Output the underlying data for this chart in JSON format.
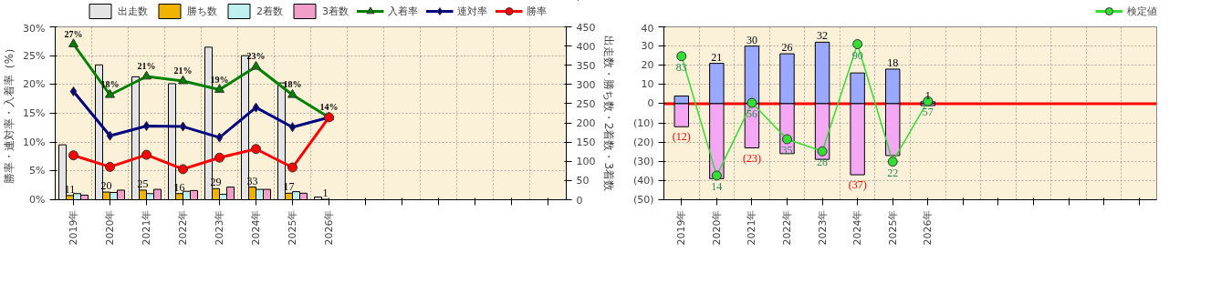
{
  "chart_data": [
    {
      "type": "bar",
      "categories": [
        "2019年",
        "2020年",
        "2021年",
        "2022年",
        "2023年",
        "2024年",
        "2025年",
        "2026年",
        null,
        null,
        null,
        null,
        null,
        null
      ],
      "ylabel": "勝率・連対率・入着率（%）",
      "y2label": "出走数・勝ち数・2着数・3着数",
      "ylim": [
        0,
        30
      ],
      "yticks": [
        {
          "value": 0,
          "label": "0%"
        },
        {
          "value": 5,
          "label": "5%"
        },
        {
          "value": 10,
          "label": "10%"
        },
        {
          "value": 15,
          "label": "15%"
        },
        {
          "value": 20,
          "label": "20%"
        },
        {
          "value": 25,
          "label": "25%"
        },
        {
          "value": 30,
          "label": "30%"
        }
      ],
      "y2lim": [
        0,
        450
      ],
      "y2ticks": [
        0,
        50,
        100,
        150,
        200,
        250,
        300,
        350,
        400,
        450
      ],
      "grid": true,
      "legend": "top",
      "series": [
        {
          "name": "出走数",
          "type": "bar",
          "axis": "y2",
          "color": "#e4e4e4",
          "values": [
            143,
            351,
            320,
            302,
            397,
            375,
            304,
            7,
            null,
            null,
            null,
            null,
            null,
            null
          ]
        },
        {
          "name": "勝ち数",
          "type": "bar",
          "axis": "y2",
          "color": "#f0b400",
          "values": [
            11,
            20,
            25,
            16,
            29,
            33,
            17,
            1,
            null,
            null,
            null,
            null,
            null,
            null
          ],
          "value_labels": [
            "11",
            "20",
            "25",
            "16",
            "29",
            "33",
            "17",
            "1",
            null,
            null,
            null,
            null,
            null,
            null
          ]
        },
        {
          "name": "2着数",
          "type": "bar",
          "axis": "y2",
          "color": "#bff0f0",
          "values": [
            16,
            19,
            16,
            22,
            14,
            27,
            21,
            null,
            null,
            null,
            null,
            null,
            null,
            null
          ]
        },
        {
          "name": "3着数",
          "type": "bar",
          "axis": "y2",
          "color": "#f0a0c8",
          "values": [
            12,
            25,
            27,
            24,
            33,
            27,
            17,
            null,
            null,
            null,
            null,
            null,
            null,
            null
          ]
        },
        {
          "name": "入着率",
          "type": "line",
          "color": "#008000",
          "marker": "triangle",
          "values": [
            27,
            18.2,
            21.4,
            20.6,
            19.1,
            23.1,
            18.2,
            14.3,
            null,
            null,
            null,
            null,
            null,
            null
          ],
          "value_labels": [
            "27%",
            "18%",
            "21%",
            "21%",
            "19%",
            "23%",
            "18%",
            "14%",
            null,
            null,
            null,
            null,
            null,
            null
          ]
        },
        {
          "name": "連対率",
          "type": "line",
          "color": "#000080",
          "marker": "diamond",
          "values": [
            18.8,
            11.1,
            12.8,
            12.7,
            10.8,
            16.0,
            12.6,
            14.3,
            null,
            null,
            null,
            null,
            null,
            null
          ]
        },
        {
          "name": "勝率",
          "type": "line",
          "color": "#ff0000",
          "marker": "circle",
          "values": [
            7.7,
            5.7,
            7.8,
            5.3,
            7.3,
            8.8,
            5.6,
            14.3,
            null,
            null,
            null,
            null,
            null,
            null
          ]
        }
      ]
    },
    {
      "type": "bar",
      "stacked": true,
      "categories": [
        "2019年",
        "2020年",
        "2021年",
        "2022年",
        "2023年",
        "2024年",
        "2025年",
        "2026年",
        null,
        null,
        null,
        null,
        null,
        null
      ],
      "ylim": [
        -50,
        40
      ],
      "yticks": [
        {
          "value": -50,
          "label": "(50)"
        },
        {
          "value": -40,
          "label": "(40)"
        },
        {
          "value": -30,
          "label": "(30)"
        },
        {
          "value": -20,
          "label": "(20)"
        },
        {
          "value": -10,
          "label": "(10)"
        },
        0,
        10,
        20,
        30,
        40
      ],
      "y2lim": [
        0,
        100
      ],
      "grid": true,
      "legend": "top right",
      "ref_lines": [
        {
          "axis": "y",
          "value": 0,
          "color": "#ff0000"
        }
      ],
      "series": [
        {
          "type": "bar",
          "color": "#9aa8ff",
          "values": [
            4,
            21,
            30,
            26,
            32,
            16,
            18,
            1,
            null,
            null,
            null,
            null,
            null,
            null
          ],
          "value_labels": [
            null,
            "21",
            "30",
            "26",
            "32",
            null,
            "18",
            "1",
            null,
            null,
            null,
            null,
            null,
            null
          ]
        },
        {
          "type": "bar",
          "color": "#f4a8f4",
          "values": [
            -12,
            -39,
            -23,
            -26,
            -29,
            -37,
            -27,
            -1,
            null,
            null,
            null,
            null,
            null,
            null
          ],
          "value_labels": [
            "(12)",
            null,
            "(23)",
            null,
            null,
            "(37)",
            null,
            null,
            null,
            null,
            null,
            null,
            null,
            null
          ]
        },
        {
          "name": "検定値",
          "type": "line",
          "axis": "y2",
          "color": "#33dd33",
          "marker": "circle",
          "values": [
            83,
            14,
            56,
            35,
            28,
            90,
            22,
            57,
            null,
            null,
            null,
            null,
            null,
            null
          ],
          "value_labels": [
            "83",
            "14",
            "56",
            "35",
            "28",
            "90",
            "22",
            "57",
            null,
            null,
            null,
            null,
            null,
            null
          ]
        }
      ]
    }
  ]
}
